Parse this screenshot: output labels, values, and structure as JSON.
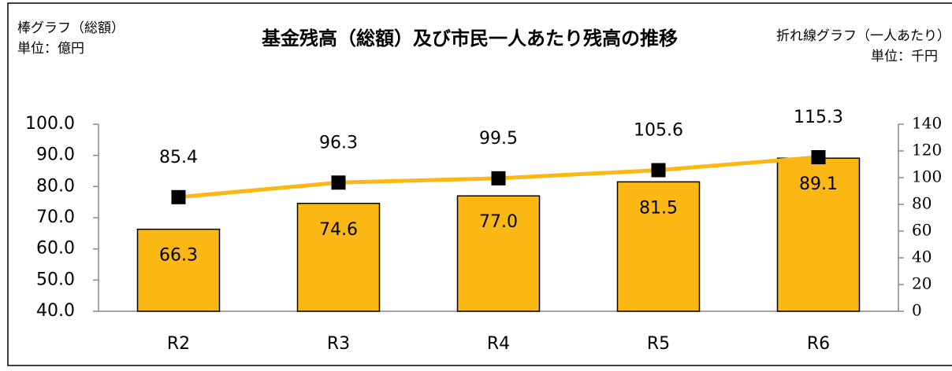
{
  "chart_data": {
    "type": "bar-line",
    "title": "基金残高（総額）及び市民一人あたり残高の推移",
    "annotations": {
      "left": [
        "棒グラフ（総額）",
        "単位：億円"
      ],
      "right": [
        "折れ線グラフ（一人あたり）",
        "単位：千円"
      ]
    },
    "categories": [
      "R2",
      "R3",
      "R4",
      "R5",
      "R6"
    ],
    "series": [
      {
        "type": "bar",
        "color": "#fbb814",
        "values": [
          66.3,
          74.6,
          77.0,
          81.5,
          89.1
        ],
        "value_labels": [
          "66.3",
          "74.6",
          "77.0",
          "81.5",
          "89.1"
        ]
      },
      {
        "type": "line",
        "axis": "y2",
        "color": "#fbb814",
        "marker_color": "#000000",
        "values": [
          85.4,
          96.3,
          99.5,
          105.6,
          115.3
        ]
      }
    ],
    "ylim": [
      40,
      100
    ],
    "yticks": [
      {
        "value": 40,
        "label": "40.0"
      },
      {
        "value": 50,
        "label": "50.0"
      },
      {
        "value": 60,
        "label": "60.0"
      },
      {
        "value": 70,
        "label": "70.0"
      },
      {
        "value": 80,
        "label": "80.0"
      },
      {
        "value": 90,
        "label": "90.0"
      },
      {
        "value": 100,
        "label": "100.0"
      }
    ],
    "y2lim": [
      0,
      140
    ],
    "y2ticks": [
      0,
      20,
      40,
      60,
      80,
      100,
      120,
      140
    ],
    "grid": false
  }
}
